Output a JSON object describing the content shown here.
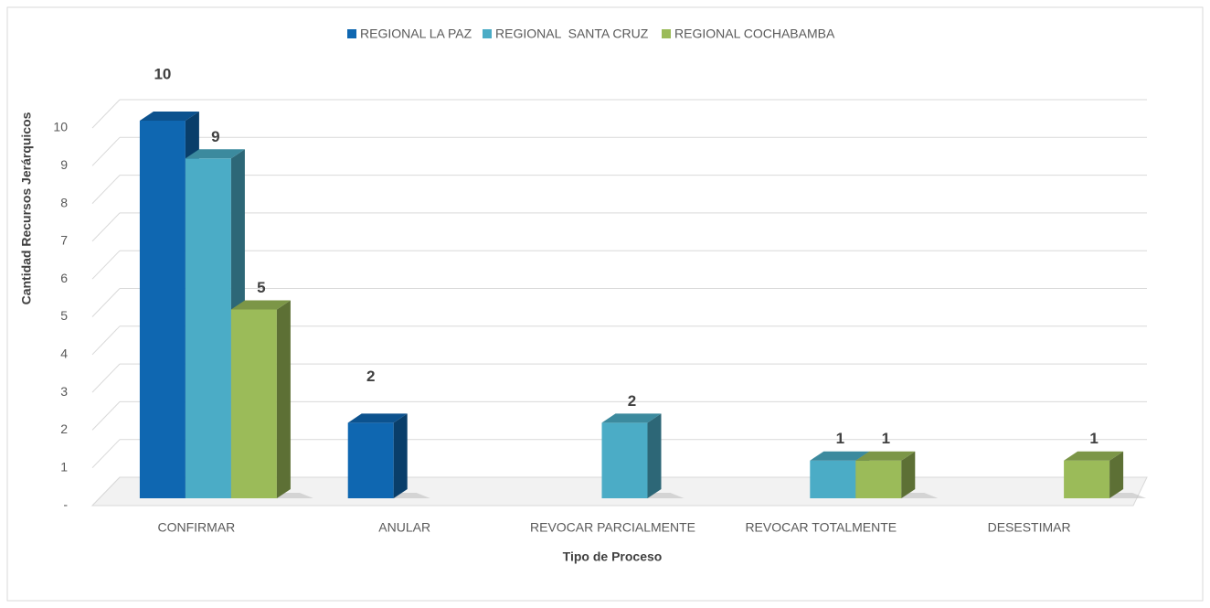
{
  "chart_data": {
    "type": "bar3d",
    "categories": [
      "CONFIRMAR",
      "ANULAR",
      "REVOCAR PARCIALMENTE",
      "REVOCAR TOTALMENTE",
      "DESESTIMAR"
    ],
    "series": [
      {
        "name": "REGIONAL LA PAZ",
        "color": "#0f67b1",
        "values": [
          10,
          2,
          null,
          null,
          null
        ]
      },
      {
        "name": "REGIONAL  SANTA CRUZ",
        "color": "#4bacc6",
        "values": [
          9,
          null,
          2,
          1,
          null
        ]
      },
      {
        "name": "REGIONAL COCHABAMBA",
        "color": "#9bbb59",
        "values": [
          5,
          null,
          null,
          1,
          1
        ]
      }
    ],
    "xlabel": "Tipo de Proceso",
    "ylabel": "Cantidad Recursos Jerárquicos",
    "ylim": [
      0,
      10
    ],
    "yticks": [
      {
        "value": 0,
        "label": "-"
      },
      1,
      2,
      3,
      4,
      5,
      6,
      7,
      8,
      9,
      10
    ],
    "grid": true,
    "legend": "top"
  }
}
